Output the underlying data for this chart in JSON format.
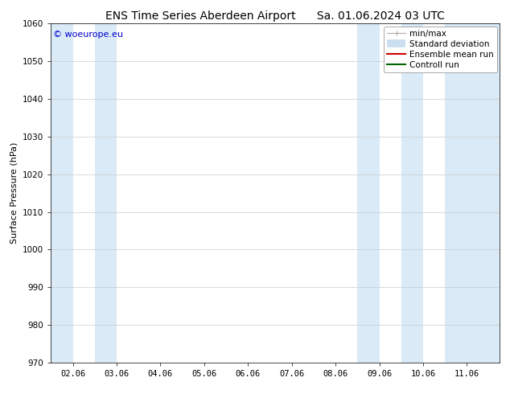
{
  "title": "ENS Time Series Aberdeen Airport",
  "title2": "Sa. 01.06.2024 03 UTC",
  "ylabel": "Surface Pressure (hPa)",
  "ylim": [
    970,
    1060
  ],
  "yticks": [
    970,
    980,
    990,
    1000,
    1010,
    1020,
    1030,
    1040,
    1050,
    1060
  ],
  "xtick_labels": [
    "02.06",
    "03.06",
    "04.06",
    "05.06",
    "06.06",
    "07.06",
    "08.06",
    "09.06",
    "10.06",
    "11.06"
  ],
  "xtick_positions": [
    1,
    2,
    3,
    4,
    5,
    6,
    7,
    8,
    9,
    10
  ],
  "xlim": [
    0.5,
    10.75
  ],
  "shaded_bands": [
    {
      "x_start": 0.5,
      "x_end": 1.0
    },
    {
      "x_start": 1.5,
      "x_end": 2.0
    },
    {
      "x_start": 7.5,
      "x_end": 8.0
    },
    {
      "x_start": 8.5,
      "x_end": 9.0
    },
    {
      "x_start": 9.5,
      "x_end": 10.75
    }
  ],
  "band_color": "#daeaf7",
  "copyright_text": "© woeurope.eu",
  "copyright_color": "#0000cc",
  "legend_items": [
    {
      "label": "min/max",
      "color": "#aaaaaa",
      "lw": 1,
      "style": "errbar"
    },
    {
      "label": "Standard deviation",
      "color": "#ccdff0",
      "lw": 6,
      "style": "band"
    },
    {
      "label": "Ensemble mean run",
      "color": "#cc0000",
      "lw": 1.5,
      "style": "line"
    },
    {
      "label": "Controll run",
      "color": "#006600",
      "lw": 1.5,
      "style": "line"
    }
  ],
  "bg_color": "#ffffff",
  "grid_color": "#cccccc",
  "title_fontsize": 10,
  "axis_fontsize": 8,
  "tick_fontsize": 7.5,
  "legend_fontsize": 7.5,
  "copyright_fontsize": 8
}
